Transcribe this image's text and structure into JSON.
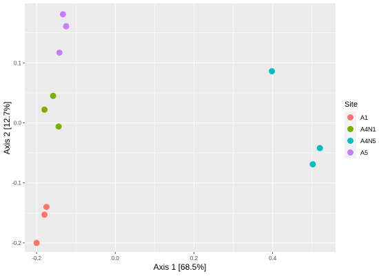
{
  "chart_data": {
    "type": "scatter",
    "xlabel": "Axis 1 [68.5%]",
    "ylabel": "Axis 2 [12.7%]",
    "xlim": [
      -0.23,
      0.56
    ],
    "ylim": [
      -0.215,
      0.199
    ],
    "x_ticks": [
      -0.2,
      0.0,
      0.2,
      0.4
    ],
    "x_tick_labels": [
      "-0.2",
      "0.0",
      "0.2",
      "0.4"
    ],
    "y_ticks": [
      -0.2,
      -0.1,
      0.0,
      0.1
    ],
    "y_tick_labels": [
      "-0.2",
      "-0.1",
      "0.0",
      "0.1"
    ],
    "grid": true,
    "legend": {
      "title": "Site",
      "placement": "right"
    },
    "series": [
      {
        "name": "A1",
        "color": "#F8766D",
        "points": [
          [
            -0.2,
            -0.2
          ],
          [
            -0.175,
            -0.14
          ],
          [
            -0.18,
            -0.153
          ]
        ]
      },
      {
        "name": "A4N1",
        "color": "#7CAE00",
        "points": [
          [
            -0.158,
            0.045
          ],
          [
            -0.18,
            0.022
          ],
          [
            -0.144,
            -0.006
          ]
        ]
      },
      {
        "name": "A4N5",
        "color": "#00BFC4",
        "points": [
          [
            0.398,
            0.086
          ],
          [
            0.52,
            -0.042
          ],
          [
            0.502,
            -0.069
          ]
        ]
      },
      {
        "name": "A5",
        "color": "#C77CFF",
        "points": [
          [
            -0.133,
            0.181
          ],
          [
            -0.125,
            0.161
          ],
          [
            -0.142,
            0.117
          ]
        ]
      }
    ]
  }
}
